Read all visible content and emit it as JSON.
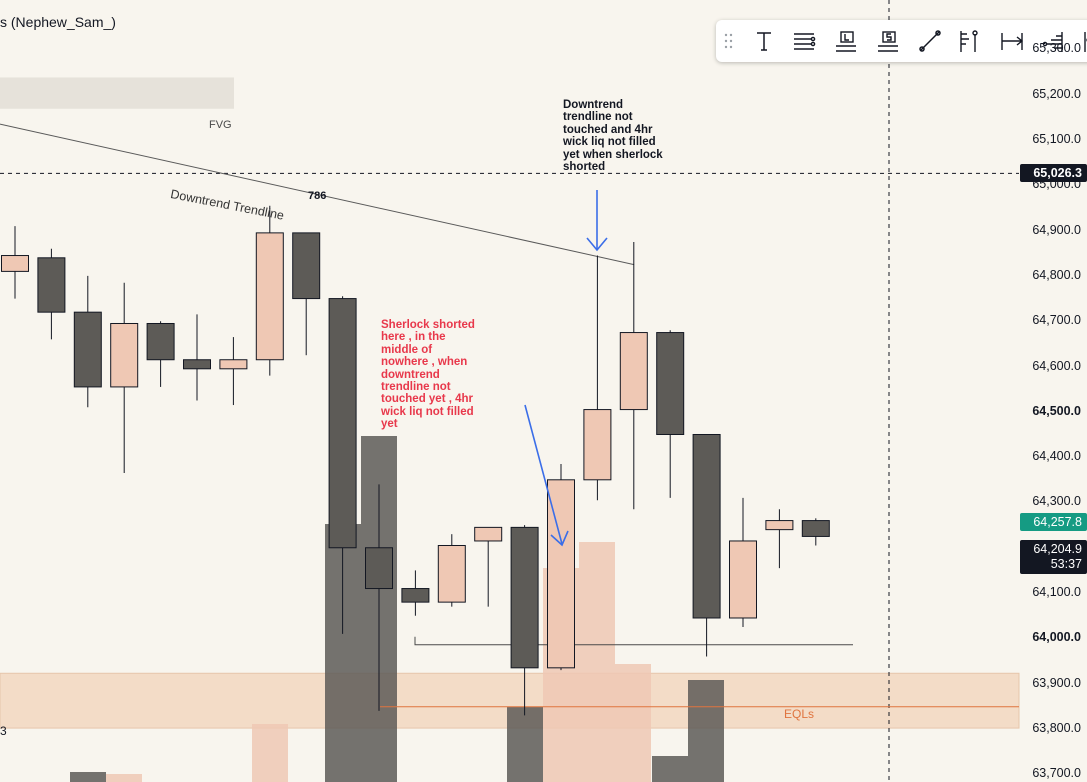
{
  "header": {
    "title": "s (Nephew_Sam_)"
  },
  "toolbar": {
    "tools": [
      {
        "icon": "drag-handle-icon",
        "kind": "grip"
      },
      {
        "icon": "text-tool-icon",
        "kind": "text"
      },
      {
        "icon": "multi-line-tool-icon",
        "kind": "lines"
      },
      {
        "icon": "label-line-tool-icon",
        "kind": "label"
      },
      {
        "icon": "price-line-tool-icon",
        "kind": "price"
      },
      {
        "icon": "trend-line-tool-icon",
        "kind": "trend"
      },
      {
        "icon": "vertical-ruler-tool-icon",
        "kind": "vruler"
      },
      {
        "icon": "range-tool-icon",
        "kind": "range"
      },
      {
        "icon": "volume-profile-tool-icon",
        "kind": "vprofile"
      },
      {
        "icon": "more-tool-icon",
        "kind": "more"
      }
    ]
  },
  "price_axis": {
    "labels": [
      "65,300.0",
      "65,200.0",
      "65,100.0",
      "65,000.0",
      "64,900.0",
      "64,800.0",
      "64,700.0",
      "64,600.0",
      "64,500.0",
      "64,400.0",
      "64,300.0",
      "64,100.0",
      "64,000.0",
      "63,900.0",
      "63,800.0",
      "63,700.0"
    ],
    "bold_labels": [
      "64,500.0",
      "64,000.0"
    ],
    "badges": {
      "crosshair": "65,026.3",
      "last_price": "64,257.8",
      "current": "64,204.9",
      "countdown": "53:37"
    }
  },
  "annotations": {
    "fvg_label": "FVG",
    "fib_label": "786",
    "trendline_label": "Downtrend Trendline",
    "note_black": "Downtrend\ntrendline not\ntouched and 4hr\nwick liq not filled\nyet when sherlock\nshorted",
    "note_red": "Sherlock shorted\nhere , in the\nmiddle of\nnowhere , when\ndowntrend\ntrendline not\ntouched yet , 4hr\nwick liq not filled\nyet",
    "eqls_label": "EQLs",
    "edge_label": "3"
  },
  "colors": {
    "background": "#f8f5ee",
    "bull_body": "#efc8b4",
    "bear_body": "#5d5b57",
    "candle_outline": "#131722",
    "zone": "#f3dcc7",
    "fvg_zone": "#e6e2da",
    "arrow": "#3b6ee8",
    "note_red": "#e8384b",
    "eqls_line": "#e0743f",
    "badge_green": "#159b83",
    "badge_black": "#131722"
  },
  "chart_data": {
    "type": "candlestick",
    "y_range": [
      63683,
      65409
    ],
    "candles": [
      {
        "o": 64810,
        "h": 64910,
        "l": 64750,
        "c": 64845
      },
      {
        "o": 64840,
        "h": 64860,
        "l": 64660,
        "c": 64720
      },
      {
        "o": 64720,
        "h": 64800,
        "l": 64510,
        "c": 64555
      },
      {
        "o": 64555,
        "h": 64785,
        "l": 64365,
        "c": 64695
      },
      {
        "o": 64695,
        "h": 64700,
        "l": 64555,
        "c": 64615
      },
      {
        "o": 64615,
        "h": 64715,
        "l": 64525,
        "c": 64595
      },
      {
        "o": 64595,
        "h": 64665,
        "l": 64515,
        "c": 64615
      },
      {
        "o": 64615,
        "h": 64955,
        "l": 64580,
        "c": 64895
      },
      {
        "o": 64895,
        "h": 64890,
        "l": 64625,
        "c": 64750
      },
      {
        "o": 64750,
        "h": 64755,
        "l": 64010,
        "c": 64200
      },
      {
        "o": 64200,
        "h": 64340,
        "l": 63840,
        "c": 64110
      },
      {
        "o": 64110,
        "h": 64150,
        "l": 64050,
        "c": 64080
      },
      {
        "o": 64080,
        "h": 64230,
        "l": 64070,
        "c": 64205
      },
      {
        "o": 64215,
        "h": 64245,
        "l": 64070,
        "c": 64245
      },
      {
        "o": 64245,
        "h": 64250,
        "l": 63830,
        "c": 63935
      },
      {
        "o": 63935,
        "h": 64385,
        "l": 63930,
        "c": 64350
      },
      {
        "o": 64350,
        "h": 64845,
        "l": 64305,
        "c": 64505
      },
      {
        "o": 64505,
        "h": 64875,
        "l": 64285,
        "c": 64675
      },
      {
        "o": 64675,
        "h": 64680,
        "l": 64310,
        "c": 64450
      },
      {
        "o": 64450,
        "h": 64450,
        "l": 63960,
        "c": 64045
      },
      {
        "o": 64045,
        "h": 64310,
        "l": 64025,
        "c": 64215
      },
      {
        "o": 64240,
        "h": 64285,
        "l": 64155,
        "c": 64260
      },
      {
        "o": 64260,
        "h": 64265,
        "l": 64205,
        "c": 64225
      }
    ],
    "volume": [
      {
        "dir": "bear",
        "v": 10
      },
      {
        "dir": "bull",
        "v": 8
      },
      {
        "dir": "bull",
        "v": 58
      },
      {
        "dir": "bear",
        "v": 258
      },
      {
        "dir": "bear",
        "v": 346
      },
      {
        "dir": "bear",
        "v": 75
      },
      {
        "dir": "bull",
        "v": 214
      },
      {
        "dir": "bull",
        "v": 240
      },
      {
        "dir": "bull",
        "v": 118
      },
      {
        "dir": "bear",
        "v": 26
      },
      {
        "dir": "bear",
        "v": 102
      }
    ],
    "levels": {
      "crosshair_price": 65026.3,
      "last_price": 64257.8,
      "eqls_price": 63849,
      "swing_low_price": 63986,
      "zone": [
        63802,
        63923
      ],
      "fvg_zone": [
        65169,
        65238
      ]
    },
    "trendline": {
      "from": 65135,
      "to": 64825
    }
  }
}
